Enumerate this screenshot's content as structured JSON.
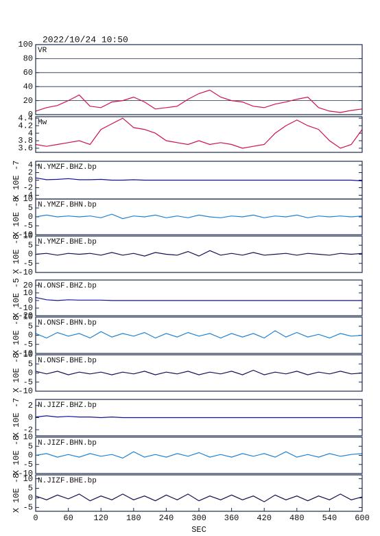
{
  "chart_data": [
    {
      "type": "line",
      "title": "2022/10/24  10:50",
      "label": "VR",
      "xlim": [
        0,
        600
      ],
      "ylim": [
        0,
        100
      ],
      "yticks": [
        0,
        20,
        40,
        60,
        80,
        100
      ],
      "grid": true,
      "x": [
        0,
        20,
        40,
        60,
        80,
        100,
        120,
        140,
        160,
        180,
        200,
        220,
        240,
        260,
        280,
        300,
        320,
        340,
        360,
        380,
        400,
        420,
        440,
        460,
        480,
        500,
        520,
        540,
        560,
        580,
        600
      ],
      "series": [
        {
          "color": "#d0104c",
          "values": [
            5,
            10,
            13,
            20,
            28,
            12,
            10,
            18,
            20,
            25,
            18,
            8,
            10,
            12,
            22,
            30,
            35,
            25,
            20,
            18,
            12,
            10,
            15,
            18,
            22,
            25,
            10,
            5,
            3,
            6,
            8
          ]
        }
      ]
    },
    {
      "type": "line",
      "label": "Mw",
      "xlim": [
        0,
        600
      ],
      "ylim": [
        3.49,
        4.44
      ],
      "yticks": [
        3.6,
        3.8,
        4.0,
        4.2,
        4.4
      ],
      "grid": false,
      "x": [
        0,
        20,
        40,
        60,
        80,
        100,
        120,
        140,
        160,
        180,
        200,
        220,
        240,
        260,
        280,
        300,
        320,
        340,
        360,
        380,
        400,
        420,
        440,
        460,
        480,
        500,
        520,
        540,
        560,
        580,
        600
      ],
      "series": [
        {
          "color": "#d0104c",
          "values": [
            3.7,
            3.65,
            3.7,
            3.75,
            3.8,
            3.7,
            4.1,
            4.25,
            4.4,
            4.15,
            4.1,
            4.0,
            3.8,
            3.75,
            3.7,
            3.8,
            3.7,
            3.75,
            3.7,
            3.6,
            3.65,
            3.7,
            4.0,
            4.2,
            4.35,
            4.2,
            4.1,
            3.8,
            3.6,
            3.7,
            4.1
          ]
        }
      ]
    },
    {
      "type": "line",
      "label": "N.YMZF.BHZ.bp",
      "ylabel": "X 10E -7",
      "xlim": [
        0,
        600
      ],
      "ylim": [
        -5,
        5
      ],
      "yticks": [
        4,
        2,
        0,
        -2,
        -4
      ],
      "grid": false,
      "x": [
        0,
        20,
        40,
        60,
        80,
        100,
        120,
        140,
        160,
        180,
        200,
        220,
        240,
        260,
        280,
        300,
        320,
        340,
        360,
        380,
        400,
        420,
        440,
        460,
        480,
        500,
        520,
        540,
        560,
        580,
        600
      ],
      "series": [
        {
          "color": "#1010a0",
          "values": [
            0.6,
            0.1,
            0.2,
            0.4,
            0.1,
            0.1,
            0.2,
            0,
            0,
            0.1,
            0,
            0,
            0,
            0,
            0,
            0,
            0,
            0,
            0,
            0,
            0,
            0,
            0,
            0,
            0,
            0,
            0,
            0,
            0,
            0,
            -0.2
          ]
        }
      ]
    },
    {
      "type": "line",
      "label": "N.YMZF.BHN.bp",
      "ylabel": "X 10E -8",
      "xlim": [
        0,
        600
      ],
      "ylim": [
        -10,
        10
      ],
      "yticks": [
        10,
        5,
        0,
        -5,
        -10
      ],
      "grid": false,
      "x": [
        0,
        20,
        40,
        60,
        80,
        100,
        120,
        140,
        160,
        180,
        200,
        220,
        240,
        260,
        280,
        300,
        320,
        340,
        360,
        380,
        400,
        420,
        440,
        460,
        480,
        500,
        520,
        540,
        560,
        580,
        600
      ],
      "series": [
        {
          "color": "#2080d0",
          "values": [
            0,
            1,
            0,
            0.5,
            0,
            0.5,
            -0.5,
            1.5,
            -1,
            0.5,
            0,
            1,
            -0.5,
            0.5,
            -0.5,
            1,
            0,
            -0.5,
            0.5,
            0,
            1,
            -0.5,
            0.5,
            0,
            1,
            -0.5,
            0.5,
            0,
            0.5,
            0,
            0.5
          ]
        }
      ]
    },
    {
      "type": "line",
      "label": "N.YMZF.BHE.bp",
      "ylabel": "X 10E -8",
      "xlim": [
        0,
        600
      ],
      "ylim": [
        -10,
        10
      ],
      "yticks": [
        10,
        5,
        0,
        -5,
        -10
      ],
      "grid": false,
      "x": [
        0,
        20,
        40,
        60,
        80,
        100,
        120,
        140,
        160,
        180,
        200,
        220,
        240,
        260,
        280,
        300,
        320,
        340,
        360,
        380,
        400,
        420,
        440,
        460,
        480,
        500,
        520,
        540,
        560,
        580,
        600
      ],
      "series": [
        {
          "color": "#101050",
          "values": [
            0,
            0.5,
            -0.5,
            0.5,
            0,
            0.5,
            -0.5,
            1,
            -0.5,
            0.5,
            -1,
            1,
            0,
            -0.5,
            1.5,
            -1,
            2,
            -0.5,
            0.5,
            -0.5,
            1,
            -0.5,
            0,
            0.5,
            -0.5,
            0.5,
            0,
            -0.5,
            0.5,
            0,
            0.5
          ]
        }
      ]
    },
    {
      "type": "line",
      "label": "N.ONSF.BHZ.bp",
      "ylabel": "X 10E -5",
      "xlim": [
        0,
        600
      ],
      "ylim": [
        -20,
        27
      ],
      "yticks": [
        20,
        10,
        0,
        -10,
        -20
      ],
      "grid": false,
      "x": [
        0,
        20,
        40,
        60,
        80,
        100,
        120,
        140,
        160,
        180,
        200,
        220,
        240,
        260,
        280,
        300,
        320,
        340,
        360,
        380,
        400,
        420,
        440,
        460,
        480,
        500,
        520,
        540,
        560,
        580,
        600
      ],
      "series": [
        {
          "color": "#1010a0",
          "values": [
            4,
            1,
            0,
            1,
            0.5,
            0.5,
            0.5,
            0,
            0,
            0,
            0,
            0,
            0,
            0,
            0,
            0,
            0,
            0,
            0,
            0,
            0,
            0,
            0,
            0,
            0,
            0,
            0,
            0,
            0,
            0,
            0
          ]
        }
      ]
    },
    {
      "type": "line",
      "label": "N.ONSF.BHN.bp",
      "ylabel": "X 10E -8",
      "xlim": [
        0,
        600
      ],
      "ylim": [
        -10,
        10
      ],
      "yticks": [
        10,
        5,
        0,
        -5,
        -10
      ],
      "grid": false,
      "x": [
        0,
        20,
        40,
        60,
        80,
        100,
        120,
        140,
        160,
        180,
        200,
        220,
        240,
        260,
        280,
        300,
        320,
        340,
        360,
        380,
        400,
        420,
        440,
        460,
        480,
        500,
        520,
        540,
        560,
        580,
        600
      ],
      "series": [
        {
          "color": "#2080d0",
          "values": [
            1,
            -1.5,
            1.5,
            -0.5,
            1,
            -1.5,
            2,
            -1,
            1,
            -0.5,
            1.5,
            -1.5,
            1,
            -1,
            1.5,
            -0.5,
            1,
            -1.5,
            1,
            -1,
            1,
            -1.5,
            2.5,
            -1,
            1.5,
            -1,
            0.5,
            -1.5,
            1,
            -0.5,
            0
          ]
        }
      ]
    },
    {
      "type": "line",
      "label": "N.ONSF.BHE.bp",
      "ylabel": "X 10E -8",
      "xlim": [
        0,
        600
      ],
      "ylim": [
        -10,
        10
      ],
      "yticks": [
        10,
        5,
        0,
        -5,
        -10
      ],
      "grid": false,
      "x": [
        0,
        20,
        40,
        60,
        80,
        100,
        120,
        140,
        160,
        180,
        200,
        220,
        240,
        260,
        280,
        300,
        320,
        340,
        360,
        380,
        400,
        420,
        440,
        460,
        480,
        500,
        520,
        540,
        560,
        580,
        600
      ],
      "series": [
        {
          "color": "#101050",
          "values": [
            1,
            -0.5,
            1,
            -1,
            0.5,
            -0.5,
            0.5,
            -1,
            0.5,
            -0.5,
            1,
            -1,
            0.5,
            -0.5,
            1,
            -1,
            0.5,
            -0.5,
            1,
            -1,
            1.5,
            -1,
            0.5,
            -0.5,
            1,
            -1,
            0.5,
            -0.5,
            1,
            -0.5,
            0
          ]
        }
      ]
    },
    {
      "type": "line",
      "label": "N.JIZF.BHZ.bp",
      "ylabel": "X 10E -7",
      "xlim": [
        0,
        600
      ],
      "ylim": [
        -3,
        3
      ],
      "yticks": [
        2,
        0,
        -2
      ],
      "grid": false,
      "x": [
        0,
        20,
        40,
        60,
        80,
        100,
        120,
        140,
        160,
        180,
        200,
        220,
        240,
        260,
        280,
        300,
        320,
        340,
        360,
        380,
        400,
        420,
        440,
        460,
        480,
        500,
        520,
        540,
        560,
        580,
        600
      ],
      "series": [
        {
          "color": "#1010a0",
          "values": [
            0.1,
            0.3,
            0.1,
            0.2,
            0.1,
            0.1,
            0,
            0.1,
            0,
            0,
            0,
            0,
            0,
            0,
            0,
            0,
            0,
            0,
            0,
            0,
            0,
            0,
            0,
            0,
            0,
            0,
            0,
            0,
            0,
            0,
            0
          ]
        }
      ]
    },
    {
      "type": "line",
      "label": "N.JIZF.BHN.bp",
      "ylabel": "X 10E -8",
      "xlim": [
        0,
        600
      ],
      "ylim": [
        -10,
        10
      ],
      "yticks": [
        10,
        5,
        0,
        -5,
        -10
      ],
      "grid": false,
      "x": [
        0,
        20,
        40,
        60,
        80,
        100,
        120,
        140,
        160,
        180,
        200,
        220,
        240,
        260,
        280,
        300,
        320,
        340,
        360,
        380,
        400,
        420,
        440,
        460,
        480,
        500,
        520,
        540,
        560,
        580,
        600
      ],
      "series": [
        {
          "color": "#2080d0",
          "values": [
            0,
            1,
            -1,
            0.5,
            -1,
            1,
            -0.5,
            0.5,
            -1.5,
            2,
            -1,
            0.5,
            -1,
            1,
            -0.5,
            1.5,
            -1,
            0.5,
            -1,
            1,
            -0.5,
            1,
            -1,
            2,
            -1,
            0.5,
            -1,
            1,
            -0.5,
            0.5,
            1
          ]
        }
      ]
    },
    {
      "type": "line",
      "label": "N.JIZF.BHE.bp",
      "ylabel": "X 10E -8",
      "xlim": [
        0,
        600
      ],
      "ylim": [
        -7,
        12
      ],
      "yticks": [
        10,
        5,
        0,
        -5
      ],
      "grid": false,
      "xlabel": "SEC",
      "xticks": [
        0,
        60,
        120,
        180,
        240,
        300,
        360,
        420,
        480,
        540,
        600
      ],
      "x": [
        0,
        20,
        40,
        60,
        80,
        100,
        120,
        140,
        160,
        180,
        200,
        220,
        240,
        260,
        280,
        300,
        320,
        340,
        360,
        380,
        400,
        420,
        440,
        460,
        480,
        500,
        520,
        540,
        560,
        580,
        600
      ],
      "series": [
        {
          "color": "#101050",
          "values": [
            1,
            -1,
            1.5,
            -0.5,
            2,
            -1.5,
            1,
            -1,
            2,
            -1,
            1,
            -1.5,
            1.5,
            -1,
            2,
            -1.5,
            1,
            -1,
            1.5,
            -1,
            1,
            -2,
            1.5,
            -1,
            1,
            -1.5,
            1,
            -1,
            2,
            -1,
            0.5
          ]
        }
      ]
    }
  ]
}
